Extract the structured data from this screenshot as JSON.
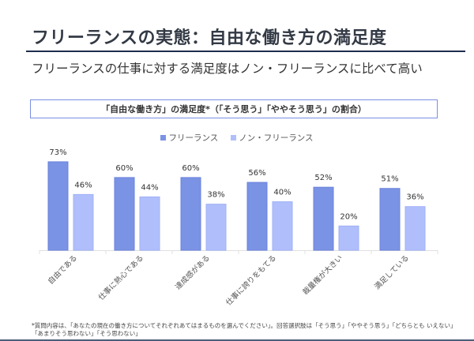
{
  "page": {
    "title": "フリーランスの実態：自由な働き方の満足度",
    "subtitle": "フリーランスの仕事に対する満足度はノン・フリーランスに比べて高い",
    "chart_box_title": "「自由な働き方」の満足度*（「そう思う」「ややそう思う」の割合）",
    "footnote": "*質問内容は、「あなたの現在の働き方についてそれぞれあてはまるものを選んでください」。回答選択肢は「そう思う」「ややそう思う」「どちらとも いえない」「あまりそう思わない」「そう思わない」"
  },
  "colors": {
    "freelance": "#7b93e4",
    "non_freelance": "#b0bffb",
    "freelance_border": "#6a82dc",
    "non_freelance_border": "#9fb0f5"
  },
  "chart_data": {
    "type": "bar",
    "title": "「自由な働き方」の満足度*（「そう思う」「ややそう思う」の割合）",
    "xlabel": "",
    "ylabel": "",
    "ylim": [
      0,
      80
    ],
    "grid": false,
    "legend_position": "top-center",
    "categories": [
      "自由である",
      "仕事に熱心である",
      "達成感がある",
      "仕事に誇りをもてる",
      "裁量権が大きい",
      "満足している"
    ],
    "series": [
      {
        "name": "フリーランス",
        "values": [
          73,
          60,
          60,
          56,
          52,
          51
        ],
        "labels": [
          "73%",
          "60%",
          "60%",
          "56%",
          "52%",
          "51%"
        ]
      },
      {
        "name": "ノン・フリーランス",
        "values": [
          46,
          44,
          38,
          40,
          20,
          36
        ],
        "labels": [
          "46%",
          "44%",
          "38%",
          "40%",
          "20%",
          "36%"
        ]
      }
    ]
  }
}
